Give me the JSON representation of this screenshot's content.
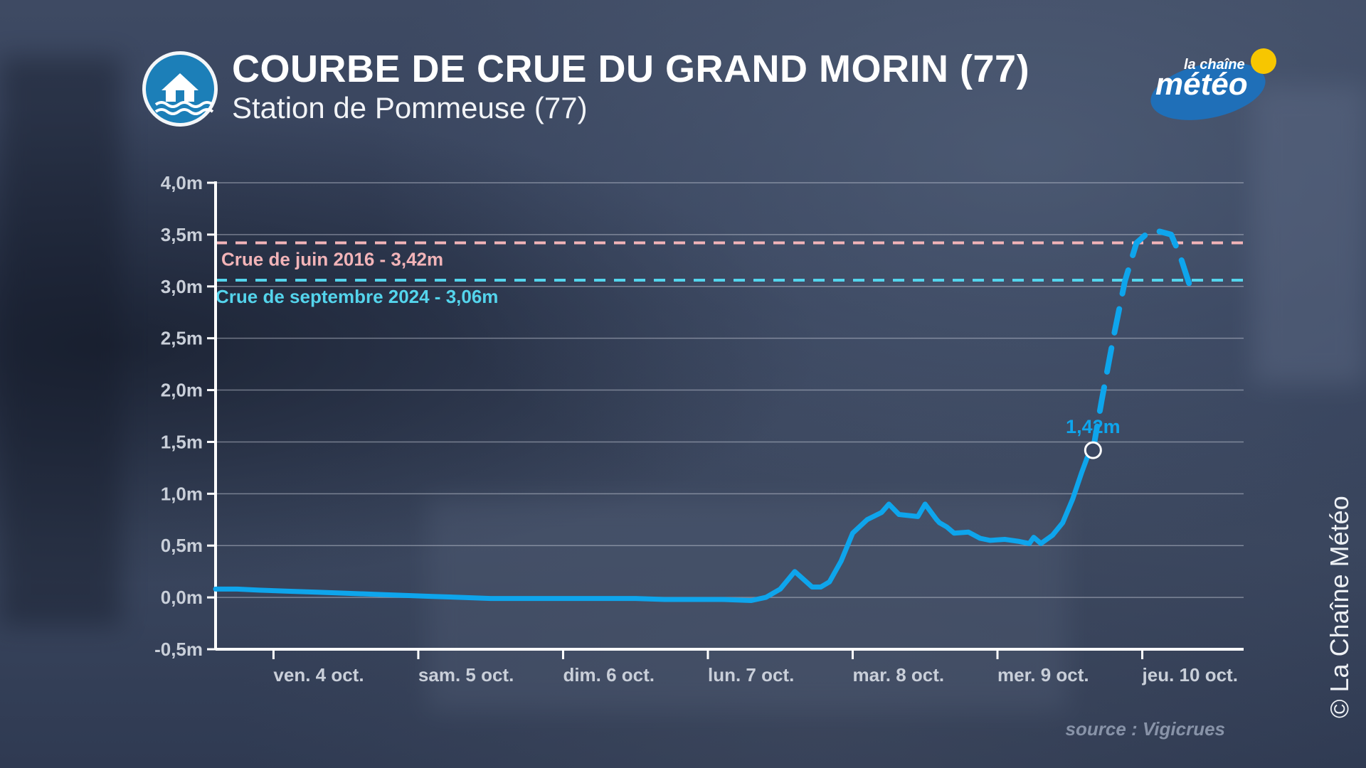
{
  "header": {
    "title": "COURBE DE CRUE DU GRAND MORIN (77)",
    "subtitle": "Station de Pommeuse (77)",
    "icon": "flooded-house-icon"
  },
  "brand": {
    "top": "la chaîne",
    "main": "météo",
    "icon": "sun-icon",
    "sun_color": "#f7c600",
    "oval_color": "#1f6fb8"
  },
  "footer": {
    "source": "source : Vigicrues",
    "copyright": "© La Chaîne Météo"
  },
  "chart_data": {
    "type": "line",
    "title": "COURBE DE CRUE DU GRAND MORIN (77)",
    "subtitle": "Station de Pommeuse (77)",
    "xlabel": "",
    "ylabel": "",
    "ylim": [
      -0.5,
      4.0
    ],
    "y_ticks": [
      4.0,
      3.5,
      3.0,
      2.5,
      2.0,
      1.5,
      1.0,
      0.5,
      0.0,
      -0.5
    ],
    "y_tick_labels": [
      "4,0m",
      "3,5m",
      "3,0m",
      "2,5m",
      "2,0m",
      "1,5m",
      "1,0m",
      "0,5m",
      "0,0m",
      "-0,5m"
    ],
    "x_range_days": [
      3.6,
      10.7
    ],
    "x_ticks": [
      4,
      5,
      6,
      7,
      8,
      9,
      10
    ],
    "x_tick_labels": [
      "ven. 4 oct.",
      "sam. 5 oct.",
      "dim. 6 oct.",
      "lun. 7 oct.",
      "mar. 8 oct.",
      "mer. 9 oct.",
      "jeu. 10 oct."
    ],
    "grid": true,
    "colors": {
      "observed": "#0ea5ec",
      "forecast": "#0ea5ec",
      "ref_2016": "#f2b4b8",
      "ref_2024": "#54d4ec"
    },
    "reference_lines": [
      {
        "label": "Crue de juin 2016 - 3,42m",
        "value": 3.42,
        "color": "#f2b4b8"
      },
      {
        "label": "Crue de septembre 2024 - 3,06m",
        "value": 3.06,
        "color": "#54d4ec"
      }
    ],
    "series": [
      {
        "style": "solid",
        "x": [
          3.6,
          3.75,
          3.9,
          4.1,
          4.3,
          4.5,
          4.7,
          4.9,
          5.1,
          5.3,
          5.5,
          5.7,
          5.9,
          6.1,
          6.3,
          6.5,
          6.7,
          6.9,
          7.1,
          7.3,
          7.4,
          7.5,
          7.6,
          7.72,
          7.78,
          7.84,
          7.92,
          8.0,
          8.1,
          8.2,
          8.25,
          8.32,
          8.45,
          8.5,
          8.58,
          8.6,
          8.65,
          8.7,
          8.8,
          8.88,
          8.95,
          9.05,
          9.15,
          9.22,
          9.25,
          9.3,
          9.38,
          9.45,
          9.52,
          9.58,
          9.62,
          9.66
        ],
        "y": [
          0.08,
          0.08,
          0.07,
          0.06,
          0.05,
          0.04,
          0.03,
          0.02,
          0.01,
          0.0,
          -0.01,
          -0.01,
          -0.01,
          -0.01,
          -0.01,
          -0.01,
          -0.02,
          -0.02,
          -0.02,
          -0.03,
          0.0,
          0.08,
          0.25,
          0.1,
          0.1,
          0.15,
          0.35,
          0.62,
          0.75,
          0.82,
          0.9,
          0.8,
          0.78,
          0.9,
          0.75,
          0.72,
          0.68,
          0.62,
          0.63,
          0.57,
          0.55,
          0.56,
          0.54,
          0.52,
          0.58,
          0.52,
          0.6,
          0.72,
          0.95,
          1.2,
          1.35,
          1.42
        ]
      },
      {
        "style": "dashed",
        "x": [
          9.66,
          9.72,
          9.8,
          9.88,
          9.96,
          10.04,
          10.12,
          10.2,
          10.26,
          10.33
        ],
        "y": [
          1.42,
          1.9,
          2.5,
          3.05,
          3.42,
          3.52,
          3.53,
          3.5,
          3.3,
          3.0
        ]
      }
    ],
    "annotations": [
      {
        "label": "1,42m",
        "x": 9.66,
        "y": 1.42
      }
    ]
  }
}
